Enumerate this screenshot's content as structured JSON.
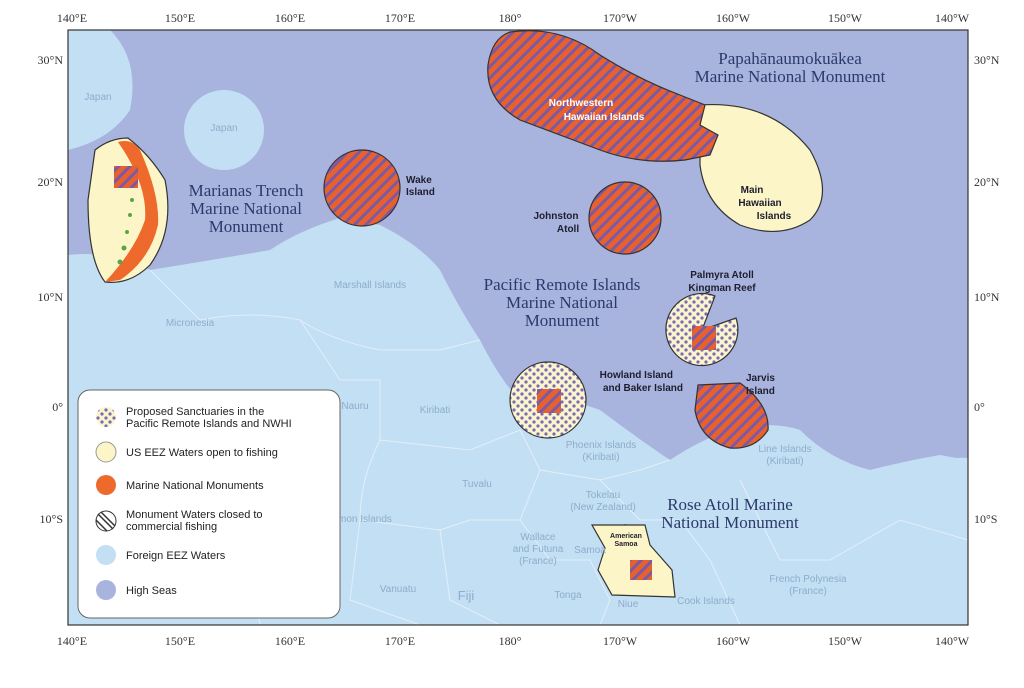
{
  "map": {
    "longitude_labels": [
      "140°E",
      "150°E",
      "160°E",
      "170°E",
      "180°",
      "170°W",
      "160°W",
      "150°W",
      "140°W"
    ],
    "latitude_labels": [
      "30°N",
      "20°N",
      "10°N",
      "0°",
      "10°S"
    ],
    "monuments": {
      "papahanaumokuakea": [
        "Papahānaumokuākea",
        "Marine National Monument"
      ],
      "marianas": [
        "Marianas Trench",
        "Marine National",
        "Monument"
      ],
      "pacific_remote": [
        "Pacific Remote Islands",
        "Marine National",
        "Monument"
      ],
      "rose_atoll": [
        "Rose Atoll Marine",
        "National Monument"
      ]
    },
    "islands": {
      "northwestern_hawaiian": [
        "Northwestern",
        "Hawaiian Islands"
      ],
      "main_hawaiian": [
        "Main",
        "Hawaiian",
        "Islands"
      ],
      "wake": [
        "Wake",
        "Island"
      ],
      "johnston": [
        "Johnston",
        "Atoll"
      ],
      "palmyra": [
        "Palmyra Atoll",
        "Kingman Reef"
      ],
      "howland": [
        "Howland Island",
        "and Baker Island"
      ],
      "jarvis": [
        "Jarvis",
        "Island"
      ],
      "american_samoa": [
        "American",
        "Samoa"
      ]
    },
    "foreign": {
      "japan_west": "Japan",
      "japan_east": "Japan",
      "marshall": "Marshall Islands",
      "micronesia": "Micronesia",
      "nauru": "Nauru",
      "kiribati": "Kiribati",
      "tuvalu": "Tuvalu",
      "solomon": "Solomon Islands",
      "vanuatu": "Vanuatu",
      "fiji": "Fiji",
      "tonga": "Tonga",
      "wallace": [
        "Wallace",
        "and Futuna",
        "(France)"
      ],
      "samoa": "Samoa",
      "niue": "Niue",
      "cook": "Cook Islands",
      "tokelau": [
        "Tokelau",
        "(New Zealand)"
      ],
      "phoenix": [
        "Phoenix Islands",
        "(Kiribati)"
      ],
      "line": [
        "Line Islands",
        "(Kiribati)"
      ],
      "french_polynesia": [
        "French Polynesia",
        "(France)"
      ]
    },
    "legend": [
      [
        "Proposed Sanctuaries in the",
        "Pacific Remote Islands and NWHI"
      ],
      [
        "US EEZ Waters open to fishing"
      ],
      [
        "Marine National Monuments"
      ],
      [
        "Monument Waters closed to",
        "commercial fishing"
      ],
      [
        "Foreign EEZ Waters"
      ],
      [
        "High Seas"
      ]
    ]
  }
}
